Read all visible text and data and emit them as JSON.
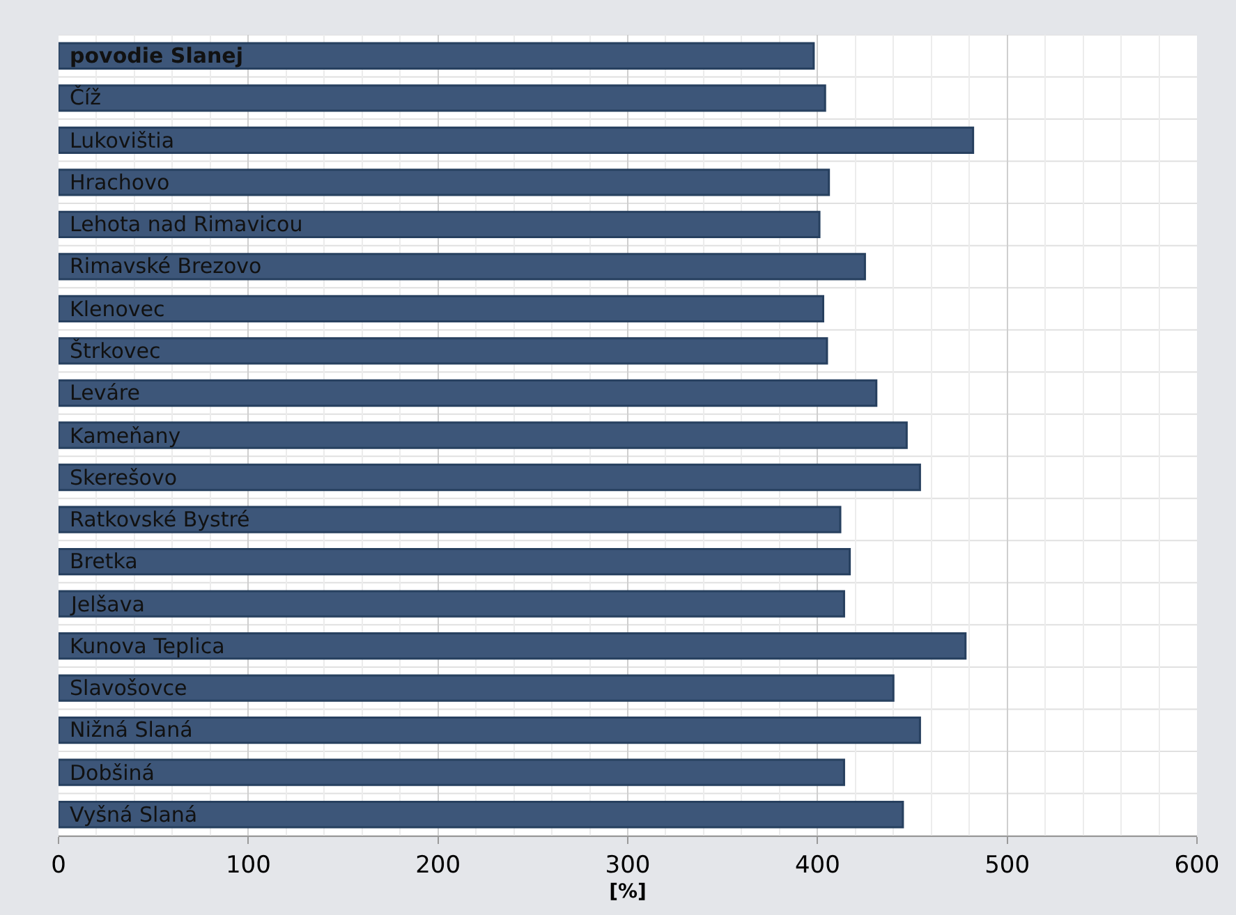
{
  "chart_data": {
    "type": "bar",
    "orientation": "horizontal",
    "xlabel": "[%]",
    "categories": [
      "povodie Slanej",
      "Číž",
      "Lukovištia",
      "Hrachovo",
      "Lehota nad Rimavicou",
      "Rimavské Brezovo",
      "Klenovec",
      "Štrkovec",
      "Leváre",
      "Kameňany",
      "Skerešovo",
      "Ratkovské Bystré",
      "Bretka",
      "Jelšava",
      "Kunova Teplica",
      "Slavošovce",
      "Nižná Slaná",
      "Dobšiná",
      "Vyšná Slaná"
    ],
    "values": [
      398,
      404,
      482,
      406,
      401,
      425,
      403,
      405,
      431,
      447,
      454,
      412,
      417,
      414,
      478,
      440,
      454,
      414,
      445
    ],
    "color": "#3d5679",
    "xlim": [
      0,
      600
    ],
    "xticks": [
      0,
      100,
      200,
      300,
      400,
      500,
      600
    ],
    "grid": true
  }
}
